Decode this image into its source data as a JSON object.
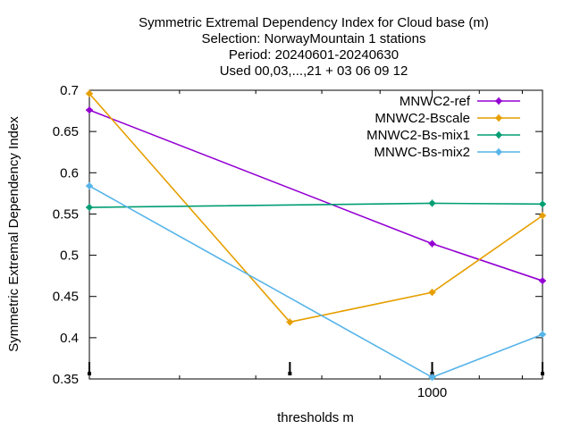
{
  "chart_data": {
    "type": "line",
    "title": [
      "Symmetric Extremal Dependency Index  for Cloud base (m)",
      "Selection: NorwayMountain      1 stations",
      "Period: 20240601-20240630",
      "Used 00,03,...,21 + 03 06 09 12"
    ],
    "xlabel": "thresholds m",
    "ylabel": "Symmetric Extremal Dependency Index",
    "x_scale": "log",
    "x": [
      500,
      750,
      1000,
      1250
    ],
    "xlim": [
      500,
      1250
    ],
    "x_tick_labels": [
      {
        "value": 1000,
        "label": "1000"
      }
    ],
    "ylim": [
      0.35,
      0.7
    ],
    "y_ticks": [
      0.35,
      0.4,
      0.45,
      0.5,
      0.55,
      0.6,
      0.65,
      0.7
    ],
    "y_tick_labels": [
      "0.35",
      "0.4",
      "0.45",
      "0.5",
      "0.55",
      "0.6",
      "0.65",
      "0.7"
    ],
    "grid": false,
    "legend_position": "top-right",
    "series": [
      {
        "name": "MNWC2-ref",
        "color": "#9400d3",
        "values": [
          0.676,
          null,
          0.514,
          0.469
        ]
      },
      {
        "name": "MNWC2-Bscale",
        "color": "#e69f00",
        "values": [
          0.696,
          0.419,
          0.455,
          0.548
        ]
      },
      {
        "name": "MNWC2-Bs-mix1",
        "color": "#009e73",
        "values": [
          0.558,
          null,
          0.563,
          0.562
        ]
      },
      {
        "name": "MNWC-Bs-mix2",
        "color": "#56b4e9",
        "values": [
          0.584,
          null,
          0.352,
          0.404
        ]
      }
    ]
  }
}
